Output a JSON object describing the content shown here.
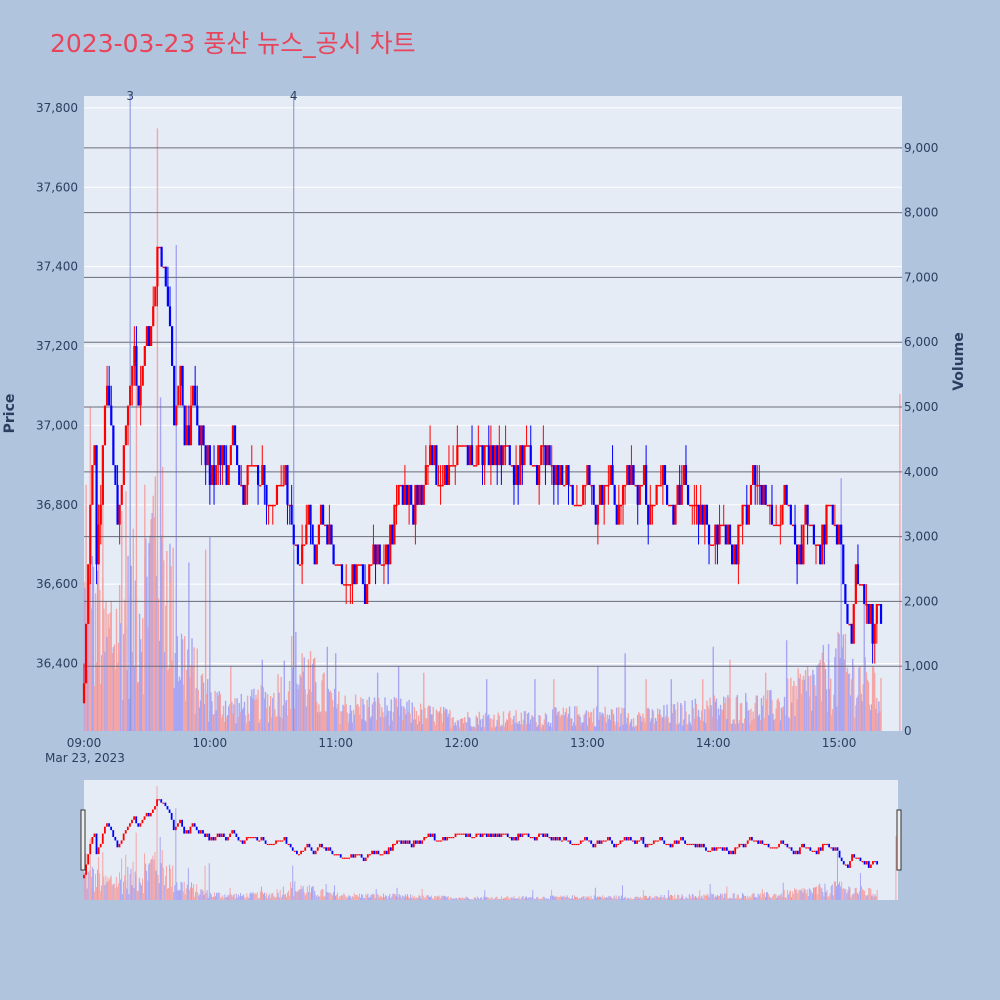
{
  "title": "2023-03-23 풍산 뉴스_공시 차트",
  "colors": {
    "page_background": "#b0c4de",
    "plot_background": "#e5ecf6",
    "title": "#e8445a",
    "up": "#ff0000",
    "down": "#0000ff",
    "volume_up": "#f4a6a6",
    "volume_down": "#a6a6f4",
    "hline": "#6b6b7b",
    "news_line": "#7f8fdf"
  },
  "chart_data": {
    "type": "candlestick",
    "date_label": "Mar 23, 2023",
    "x_ticks": [
      "09:00",
      "10:00",
      "11:00",
      "12:00",
      "13:00",
      "14:00",
      "15:00"
    ],
    "x_range": [
      "09:00",
      "15:30"
    ],
    "ylabel": "Price",
    "y2label": "Volume",
    "price_range": [
      36230,
      37830
    ],
    "price_ticks": [
      "36,400",
      "36,600",
      "36,800",
      "37,000",
      "37,200",
      "37,400",
      "37,600",
      "37,800"
    ],
    "volume_range": [
      0,
      9800
    ],
    "volume_ticks": [
      "0",
      "1,000",
      "2,000",
      "3,000",
      "4,000",
      "5,000",
      "6,000",
      "7,000",
      "8,000",
      "9,000"
    ],
    "volume_hlines": [
      1000,
      2000,
      3000,
      4000,
      5000,
      6000,
      7000,
      8000,
      9000
    ],
    "news_markers": [
      {
        "label": "3",
        "time": "09:22"
      },
      {
        "label": "4",
        "time": "10:40"
      }
    ],
    "price_path": [
      [
        "09:00",
        36300
      ],
      [
        "09:02",
        36650
      ],
      [
        "09:04",
        36900
      ],
      [
        "09:05",
        36950
      ],
      [
        "09:06",
        36650
      ],
      [
        "09:08",
        36800
      ],
      [
        "09:10",
        37050
      ],
      [
        "09:12",
        37100
      ],
      [
        "09:14",
        36900
      ],
      [
        "09:16",
        36750
      ],
      [
        "09:18",
        36850
      ],
      [
        "09:20",
        37000
      ],
      [
        "09:22",
        37100
      ],
      [
        "09:24",
        37150
      ],
      [
        "09:26",
        37050
      ],
      [
        "09:28",
        37150
      ],
      [
        "09:30",
        37200
      ],
      [
        "09:32",
        37250
      ],
      [
        "09:34",
        37350
      ],
      [
        "09:35",
        37450
      ],
      [
        "09:38",
        37400
      ],
      [
        "09:40",
        37300
      ],
      [
        "09:42",
        37150
      ],
      [
        "09:43",
        37000
      ],
      [
        "09:46",
        37100
      ],
      [
        "09:48",
        36950
      ],
      [
        "09:50",
        37000
      ],
      [
        "09:52",
        37050
      ],
      [
        "09:55",
        37000
      ],
      [
        "09:58",
        36950
      ],
      [
        "10:00",
        36850
      ],
      [
        "10:05",
        36950
      ],
      [
        "10:08",
        36900
      ],
      [
        "10:12",
        36950
      ],
      [
        "10:15",
        36850
      ],
      [
        "10:20",
        36900
      ],
      [
        "10:25",
        36850
      ],
      [
        "10:30",
        36800
      ],
      [
        "10:35",
        36850
      ],
      [
        "10:38",
        36800
      ],
      [
        "10:40",
        36700
      ],
      [
        "10:43",
        36650
      ],
      [
        "10:46",
        36750
      ],
      [
        "10:50",
        36700
      ],
      [
        "10:55",
        36750
      ],
      [
        "10:58",
        36700
      ],
      [
        "11:00",
        36650
      ],
      [
        "11:05",
        36600
      ],
      [
        "11:10",
        36650
      ],
      [
        "11:15",
        36600
      ],
      [
        "11:18",
        36700
      ],
      [
        "11:22",
        36650
      ],
      [
        "11:25",
        36700
      ],
      [
        "11:28",
        36800
      ],
      [
        "11:32",
        36850
      ],
      [
        "11:35",
        36800
      ],
      [
        "11:40",
        36850
      ],
      [
        "11:45",
        36900
      ],
      [
        "11:50",
        36850
      ],
      [
        "11:55",
        36900
      ],
      [
        "12:00",
        36950
      ],
      [
        "12:05",
        36900
      ],
      [
        "12:10",
        36950
      ],
      [
        "12:15",
        36900
      ],
      [
        "12:20",
        36950
      ],
      [
        "12:25",
        36900
      ],
      [
        "12:30",
        36950
      ],
      [
        "12:35",
        36900
      ],
      [
        "12:40",
        36950
      ],
      [
        "12:45",
        36900
      ],
      [
        "12:50",
        36850
      ],
      [
        "12:55",
        36800
      ],
      [
        "13:00",
        36850
      ],
      [
        "13:05",
        36800
      ],
      [
        "13:10",
        36850
      ],
      [
        "13:15",
        36800
      ],
      [
        "13:18",
        36850
      ],
      [
        "13:20",
        36900
      ],
      [
        "13:25",
        36850
      ],
      [
        "13:30",
        36800
      ],
      [
        "13:35",
        36850
      ],
      [
        "13:40",
        36800
      ],
      [
        "13:45",
        36850
      ],
      [
        "13:50",
        36800
      ],
      [
        "13:55",
        36750
      ],
      [
        "14:00",
        36700
      ],
      [
        "14:05",
        36750
      ],
      [
        "14:10",
        36700
      ],
      [
        "14:15",
        36800
      ],
      [
        "14:20",
        36850
      ],
      [
        "14:25",
        36800
      ],
      [
        "14:30",
        36750
      ],
      [
        "14:35",
        36800
      ],
      [
        "14:40",
        36700
      ],
      [
        "14:45",
        36750
      ],
      [
        "14:50",
        36700
      ],
      [
        "14:55",
        36800
      ],
      [
        "15:00",
        36750
      ],
      [
        "15:02",
        36600
      ],
      [
        "15:04",
        36500
      ],
      [
        "15:06",
        36450
      ],
      [
        "15:08",
        36650
      ],
      [
        "15:10",
        36600
      ],
      [
        "15:12",
        36550
      ],
      [
        "15:14",
        36500
      ],
      [
        "15:16",
        36450
      ],
      [
        "15:18",
        36550
      ],
      [
        "15:20",
        36500
      ]
    ],
    "volume_profile": [
      [
        "09:00",
        2500
      ],
      [
        "09:10",
        1800
      ],
      [
        "09:20",
        2200
      ],
      [
        "09:30",
        2800
      ],
      [
        "09:35",
        4500
      ],
      [
        "09:45",
        1600
      ],
      [
        "10:00",
        600
      ],
      [
        "10:15",
        450
      ],
      [
        "10:30",
        600
      ],
      [
        "10:40",
        1300
      ],
      [
        "11:00",
        500
      ],
      [
        "11:30",
        400
      ],
      [
        "12:00",
        250
      ],
      [
        "12:30",
        250
      ],
      [
        "13:00",
        320
      ],
      [
        "13:30",
        280
      ],
      [
        "14:00",
        450
      ],
      [
        "14:30",
        500
      ],
      [
        "15:00",
        1200
      ],
      [
        "15:20",
        700
      ]
    ],
    "volume_spikes": [
      [
        "09:01",
        3800,
        "up"
      ],
      [
        "09:03",
        5000,
        "up"
      ],
      [
        "09:04",
        2700,
        "down"
      ],
      [
        "09:07",
        3500,
        "up"
      ],
      [
        "09:09",
        3900,
        "up"
      ],
      [
        "09:13",
        2000,
        "up"
      ],
      [
        "09:18",
        3400,
        "up"
      ],
      [
        "09:20",
        3700,
        "up"
      ],
      [
        "09:25",
        5500,
        "up"
      ],
      [
        "09:29",
        3800,
        "up"
      ],
      [
        "09:31",
        2900,
        "down"
      ],
      [
        "09:33",
        2600,
        "up"
      ],
      [
        "09:35",
        9300,
        "up"
      ],
      [
        "09:37",
        2900,
        "down"
      ],
      [
        "09:41",
        2300,
        "up"
      ],
      [
        "09:44",
        7500,
        "down"
      ],
      [
        "09:50",
        2600,
        "down"
      ],
      [
        "09:58",
        2800,
        "up"
      ],
      [
        "10:00",
        3000,
        "down"
      ],
      [
        "10:10",
        1000,
        "up"
      ],
      [
        "10:25",
        1100,
        "down"
      ],
      [
        "10:40",
        2800,
        "down"
      ],
      [
        "10:44",
        1200,
        "up"
      ],
      [
        "10:56",
        1300,
        "down"
      ],
      [
        "11:00",
        1200,
        "down"
      ],
      [
        "11:20",
        900,
        "down"
      ],
      [
        "11:30",
        1000,
        "down"
      ],
      [
        "11:42",
        900,
        "up"
      ],
      [
        "12:12",
        800,
        "down"
      ],
      [
        "12:35",
        800,
        "down"
      ],
      [
        "12:44",
        800,
        "up"
      ],
      [
        "13:05",
        1000,
        "down"
      ],
      [
        "13:18",
        1200,
        "down"
      ],
      [
        "13:28",
        800,
        "up"
      ],
      [
        "13:40",
        800,
        "down"
      ],
      [
        "13:55",
        800,
        "up"
      ],
      [
        "14:00",
        1300,
        "down"
      ],
      [
        "14:08",
        1100,
        "up"
      ],
      [
        "14:25",
        900,
        "up"
      ],
      [
        "14:35",
        1400,
        "down"
      ],
      [
        "14:45",
        1000,
        "up"
      ],
      [
        "14:55",
        1100,
        "down"
      ],
      [
        "15:00",
        1500,
        "down"
      ],
      [
        "15:01",
        3900,
        "down"
      ],
      [
        "15:03",
        1500,
        "up"
      ],
      [
        "15:06",
        800,
        "up"
      ],
      [
        "15:10",
        1000,
        "up"
      ],
      [
        "15:12",
        2200,
        "down"
      ],
      [
        "15:17",
        900,
        "up"
      ],
      [
        "15:29",
        5200,
        "up"
      ]
    ]
  }
}
